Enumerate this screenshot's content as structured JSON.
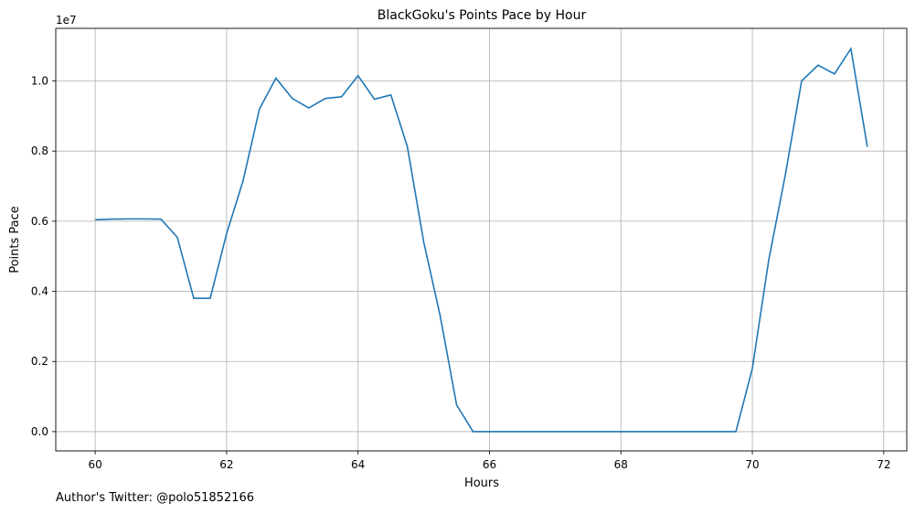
{
  "chart_data": {
    "type": "line",
    "title": "BlackGoku's Points Pace by Hour",
    "xlabel": "Hours",
    "ylabel": "Points Pace",
    "y_offset_label": "1e7",
    "xlim": [
      59.4,
      72.35
    ],
    "ylim": [
      -550000,
      11500000
    ],
    "x_ticks": [
      60,
      62,
      64,
      66,
      68,
      70,
      72
    ],
    "x_tick_labels": [
      "60",
      "62",
      "64",
      "66",
      "68",
      "70",
      "72"
    ],
    "y_ticks": [
      0,
      2000000,
      4000000,
      6000000,
      8000000,
      10000000
    ],
    "y_tick_labels": [
      "0.0",
      "0.2",
      "0.4",
      "0.6",
      "0.8",
      "1.0"
    ],
    "grid": true,
    "series": [
      {
        "color": "#1f77b4",
        "x": [
          60.0,
          60.25,
          60.5,
          60.75,
          61.0,
          61.25,
          61.5,
          61.75,
          62.0,
          62.25,
          62.5,
          62.75,
          63.0,
          63.25,
          63.5,
          63.75,
          64.0,
          64.25,
          64.5,
          64.75,
          65.0,
          65.25,
          65.5,
          65.75,
          66.0,
          66.25,
          66.5,
          66.75,
          67.0,
          67.25,
          67.5,
          67.75,
          68.0,
          68.25,
          68.5,
          68.75,
          69.0,
          69.25,
          69.5,
          69.75,
          70.0,
          70.25,
          70.5,
          70.75,
          71.0,
          71.25,
          71.5,
          71.75
        ],
        "y": [
          6040000,
          6060000,
          6065000,
          6065000,
          6060000,
          5540000,
          3800000,
          3800000,
          5650000,
          7150000,
          9200000,
          10080000,
          9500000,
          9230000,
          9500000,
          9550000,
          10150000,
          9480000,
          9600000,
          8130000,
          5400000,
          3300000,
          760000,
          0,
          0,
          0,
          0,
          0,
          0,
          0,
          0,
          0,
          0,
          0,
          0,
          0,
          0,
          0,
          0,
          0,
          1800000,
          4900000,
          7300000,
          10000000,
          10450000,
          10200000,
          10920000,
          8120000
        ]
      }
    ]
  },
  "footer": {
    "text": "Author's Twitter: @polo51852166"
  }
}
